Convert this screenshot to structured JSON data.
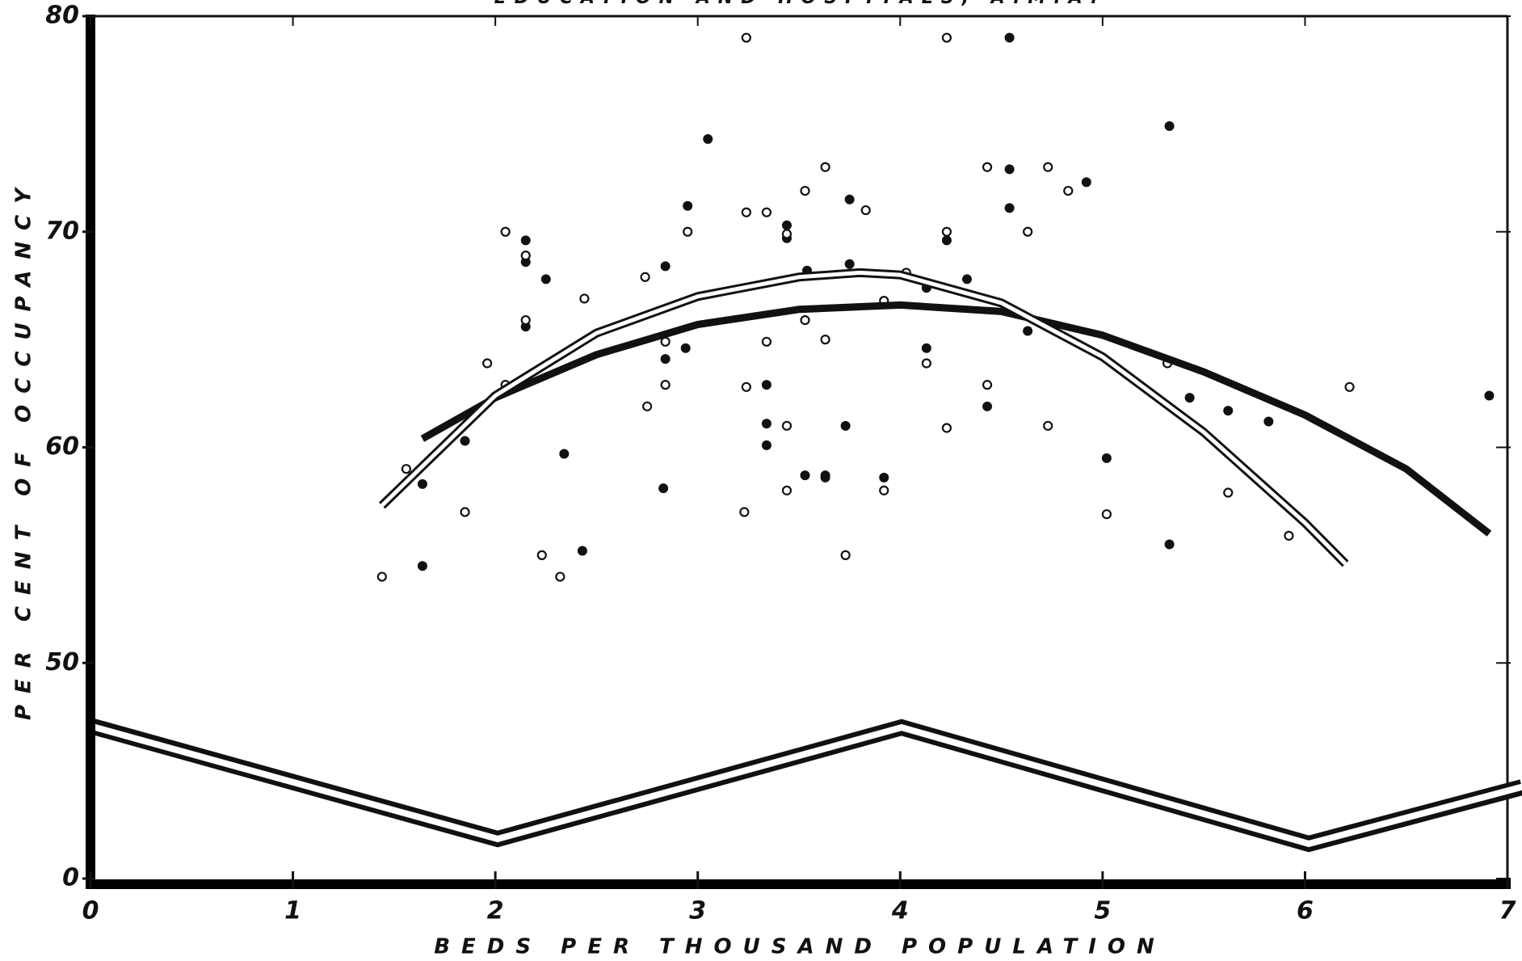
{
  "chart_data": {
    "type": "scatter",
    "title": "EDUCATION AND HOSPITALS, A.M.A.",
    "x_label": "BEDS PER THOUSAND POPULATION",
    "y_label": "PER CENT OF OCCUPANCY",
    "xlim": [
      0,
      7
    ],
    "xticks": [
      0,
      1,
      2,
      3,
      4,
      5,
      6,
      7
    ],
    "ylim": [
      0,
      80
    ],
    "yticks": [
      0,
      50,
      60,
      70,
      80
    ],
    "axis_break": [
      0,
      50
    ],
    "series": [
      {
        "type": "scatter",
        "marker": "filled",
        "color": "#111111",
        "x": [
          4.54,
          3.05,
          5.33,
          4.54,
          4.92,
          3.75,
          2.95,
          4.54,
          3.44,
          3.44,
          4.23,
          2.15,
          2.15,
          2.84,
          3.75,
          2.25,
          4.33,
          4.13,
          3.54,
          2.15,
          4.63,
          2.94,
          4.13,
          2.84,
          3.34,
          4.43,
          5.43,
          5.62,
          5.82,
          6.91,
          3.34,
          3.73,
          1.85,
          3.34,
          2.34,
          5.02,
          3.53,
          3.63,
          3.63,
          3.92,
          1.64,
          2.83,
          2.43,
          5.33,
          1.64
        ],
        "values": [
          79.0,
          74.3,
          74.9,
          72.9,
          72.3,
          71.5,
          71.2,
          71.1,
          70.3,
          69.7,
          69.6,
          69.6,
          68.6,
          68.4,
          68.5,
          67.8,
          67.8,
          67.4,
          68.2,
          65.6,
          65.4,
          64.6,
          64.6,
          64.1,
          62.9,
          61.9,
          62.3,
          61.7,
          61.2,
          62.4,
          61.1,
          61.0,
          60.3,
          60.1,
          59.7,
          59.5,
          58.7,
          58.7,
          58.6,
          58.6,
          58.3,
          58.1,
          55.2,
          55.5,
          54.5
        ]
      },
      {
        "type": "scatter",
        "marker": "open",
        "color": "#111111",
        "x": [
          3.24,
          4.23,
          3.63,
          4.43,
          4.73,
          3.53,
          4.83,
          3.24,
          3.34,
          3.83,
          2.95,
          3.44,
          4.23,
          4.63,
          2.05,
          2.15,
          2.74,
          4.03,
          2.44,
          3.92,
          2.15,
          3.53,
          2.84,
          3.34,
          3.63,
          1.96,
          4.13,
          5.32,
          2.05,
          2.84,
          3.24,
          4.43,
          6.22,
          2.75,
          3.44,
          4.23,
          4.73,
          1.56,
          1.85,
          3.23,
          3.92,
          3.44,
          5.02,
          5.62,
          5.92,
          2.23,
          3.73,
          1.44,
          2.32
        ],
        "values": [
          79.0,
          79.0,
          73.0,
          73.0,
          73.0,
          71.9,
          71.9,
          70.9,
          70.9,
          71.0,
          70.0,
          69.9,
          70.0,
          70.0,
          70.0,
          68.9,
          67.9,
          68.1,
          66.9,
          66.8,
          65.9,
          65.9,
          64.9,
          64.9,
          65.0,
          63.9,
          63.9,
          63.9,
          62.9,
          62.9,
          62.8,
          62.9,
          62.8,
          61.9,
          61.0,
          60.9,
          61.0,
          59.0,
          57.0,
          57.0,
          58.0,
          58.0,
          56.9,
          57.9,
          55.9,
          55.0,
          55.0,
          54.0,
          54.0
        ]
      },
      {
        "type": "line",
        "style": "solid",
        "color": "#111111",
        "x": [
          1.64,
          2,
          2.5,
          3,
          3.5,
          4,
          4.5,
          5,
          5.5,
          6,
          6.5,
          6.91
        ],
        "values": [
          60.4,
          62.3,
          64.3,
          65.7,
          66.4,
          66.6,
          66.3,
          65.2,
          63.5,
          61.5,
          59.0,
          56.0
        ]
      },
      {
        "type": "line",
        "style": "double",
        "color": "#111111",
        "x": [
          1.44,
          2,
          2.5,
          3,
          3.5,
          3.8,
          4,
          4.5,
          5,
          5.5,
          6,
          6.2
        ],
        "values": [
          57.3,
          62.4,
          65.3,
          67.0,
          67.9,
          68.1,
          68.0,
          66.7,
          64.2,
          60.7,
          56.5,
          54.6
        ]
      }
    ]
  }
}
